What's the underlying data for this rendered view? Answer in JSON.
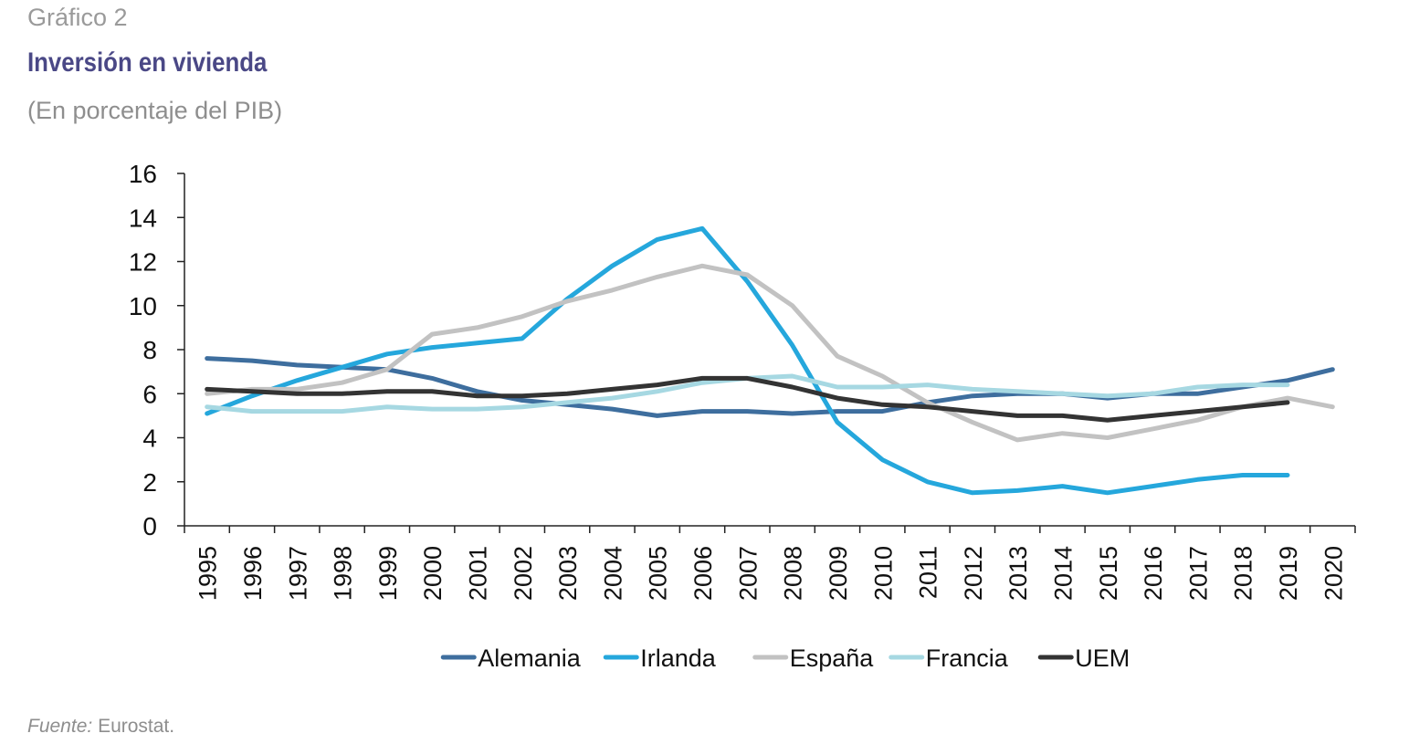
{
  "header": {
    "kicker": "Gráfico 2",
    "title": "Inversión en vivienda",
    "subtitle": "(En porcentaje del PIB)"
  },
  "footer": {
    "source_label": "Fuente:",
    "source_text": "Eurostat."
  },
  "chart_data": {
    "type": "line",
    "title": "Inversión en vivienda",
    "subtitle": "(En porcentaje del PIB)",
    "xlabel": "",
    "ylabel": "",
    "ylim": [
      0,
      16
    ],
    "yticks": [
      0,
      2,
      4,
      6,
      8,
      10,
      12,
      14,
      16
    ],
    "grid": false,
    "legend_position": "bottom",
    "categories": [
      "1995",
      "1996",
      "1997",
      "1998",
      "1999",
      "2000",
      "2001",
      "2002",
      "2003",
      "2004",
      "2005",
      "2006",
      "2007",
      "2008",
      "2009",
      "2010",
      "2011",
      "2012",
      "2013",
      "2014",
      "2015",
      "2016",
      "2017",
      "2018",
      "2019",
      "2020"
    ],
    "series": [
      {
        "name": "Alemania",
        "color": "#3e6e9e",
        "values": [
          7.6,
          7.5,
          7.3,
          7.2,
          7.1,
          6.7,
          6.1,
          5.7,
          5.5,
          5.3,
          5.0,
          5.2,
          5.2,
          5.1,
          5.2,
          5.2,
          5.6,
          5.9,
          6.0,
          6.0,
          5.8,
          6.0,
          6.0,
          6.3,
          6.6,
          7.1
        ]
      },
      {
        "name": "Irlanda",
        "color": "#25a7dc",
        "values": [
          5.1,
          5.9,
          6.6,
          7.2,
          7.8,
          8.1,
          8.3,
          8.5,
          10.3,
          11.8,
          13.0,
          13.5,
          11.1,
          8.2,
          4.7,
          3.0,
          2.0,
          1.5,
          1.6,
          1.8,
          1.5,
          1.8,
          2.1,
          2.3,
          2.3,
          null
        ]
      },
      {
        "name": "España",
        "color": "#c2c2c2",
        "values": [
          6.0,
          6.2,
          6.2,
          6.5,
          7.1,
          8.7,
          9.0,
          9.5,
          10.2,
          10.7,
          11.3,
          11.8,
          11.4,
          10.0,
          7.7,
          6.8,
          5.6,
          4.7,
          3.9,
          4.2,
          4.0,
          4.4,
          4.8,
          5.4,
          5.8,
          5.4
        ]
      },
      {
        "name": "Francia",
        "color": "#a6d8e2",
        "values": [
          5.4,
          5.2,
          5.2,
          5.2,
          5.4,
          5.3,
          5.3,
          5.4,
          5.6,
          5.8,
          6.1,
          6.5,
          6.7,
          6.8,
          6.3,
          6.3,
          6.4,
          6.2,
          6.1,
          6.0,
          5.9,
          6.0,
          6.3,
          6.4,
          6.4,
          null
        ]
      },
      {
        "name": "UEM",
        "color": "#333333",
        "values": [
          6.2,
          6.1,
          6.0,
          6.0,
          6.1,
          6.1,
          5.9,
          5.9,
          6.0,
          6.2,
          6.4,
          6.7,
          6.7,
          6.3,
          5.8,
          5.5,
          5.4,
          5.2,
          5.0,
          5.0,
          4.8,
          5.0,
          5.2,
          5.4,
          5.6,
          null
        ]
      }
    ]
  }
}
